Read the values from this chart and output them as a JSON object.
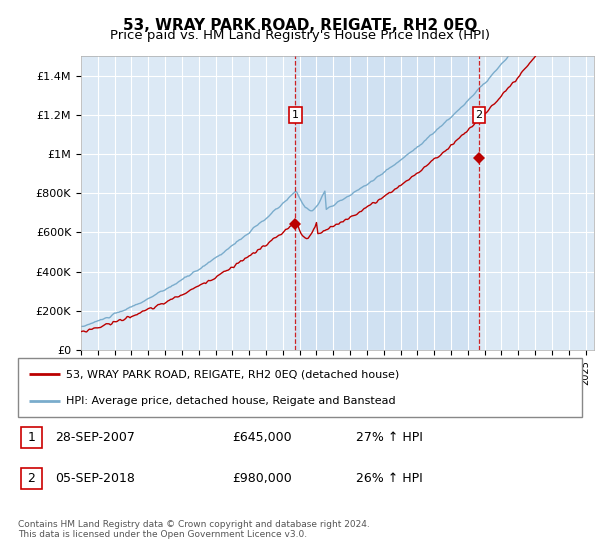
{
  "title": "53, WRAY PARK ROAD, REIGATE, RH2 0EQ",
  "subtitle": "Price paid vs. HM Land Registry's House Price Index (HPI)",
  "title_fontsize": 11,
  "subtitle_fontsize": 9.5,
  "background_color": "#ffffff",
  "plot_bg_color": "#dce9f5",
  "plot_bg_highlight": "#c8ddf0",
  "ylim": [
    0,
    1500000
  ],
  "yticks": [
    0,
    200000,
    400000,
    600000,
    800000,
    1000000,
    1200000,
    1400000
  ],
  "ytick_labels": [
    "£0",
    "£200K",
    "£400K",
    "£600K",
    "£800K",
    "£1M",
    "£1.2M",
    "£1.4M"
  ],
  "xlim_start": 1995.0,
  "xlim_end": 2025.5,
  "sale1_x": 2007.74,
  "sale1_y": 645000,
  "sale1_label": "1",
  "sale2_x": 2018.67,
  "sale2_y": 980000,
  "sale2_label": "2",
  "red_line_color": "#bb0000",
  "blue_line_color": "#7aaccc",
  "marker_box_color": "#cc0000",
  "legend_line1": "53, WRAY PARK ROAD, REIGATE, RH2 0EQ (detached house)",
  "legend_line2": "HPI: Average price, detached house, Reigate and Banstead",
  "annotation1_date": "28-SEP-2007",
  "annotation1_price": "£645,000",
  "annotation1_hpi": "27% ↑ HPI",
  "annotation2_date": "05-SEP-2018",
  "annotation2_price": "£980,000",
  "annotation2_hpi": "26% ↑ HPI",
  "footnote": "Contains HM Land Registry data © Crown copyright and database right 2024.\nThis data is licensed under the Open Government Licence v3.0.",
  "grid_color": "#ffffff",
  "dashed_line_color": "#cc0000"
}
